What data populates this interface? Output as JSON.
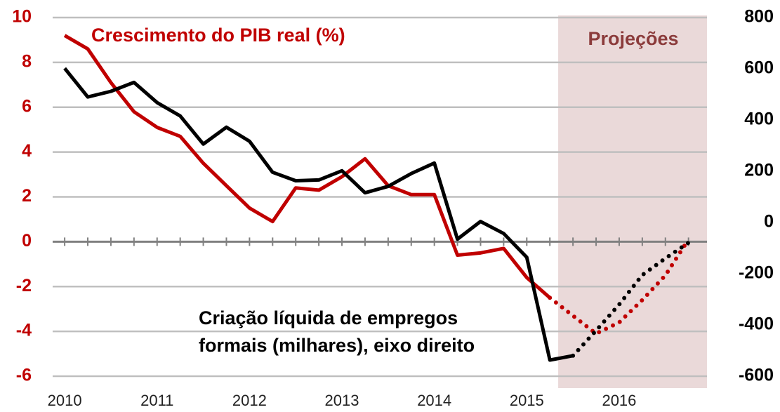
{
  "chart_data": {
    "type": "line",
    "annotations": {
      "gdp": "Crescimento do PIB real (%)",
      "projection": "Projeções",
      "jobs": [
        "Criação líquida de empregos",
        "formais (milhares), eixo direito"
      ]
    },
    "x": [
      2010,
      2010.25,
      2010.5,
      2010.75,
      2011,
      2011.25,
      2011.5,
      2011.75,
      2012,
      2012.25,
      2012.5,
      2012.75,
      2013,
      2013.25,
      2013.5,
      2013.75,
      2014,
      2014.25,
      2014.5,
      2014.75,
      2015,
      2015.25,
      2015.5,
      2015.75,
      2016,
      2016.25,
      2016.5,
      2016.75
    ],
    "series": [
      {
        "name": "Crescimento do PIB real (%)",
        "color": "#c00000",
        "dotted_from": 2015.25,
        "values": [
          9.2,
          8.6,
          7.1,
          5.8,
          5.1,
          4.7,
          3.5,
          2.5,
          1.5,
          0.9,
          2.4,
          2.3,
          2.9,
          3.7,
          2.5,
          2.1,
          2.1,
          -0.6,
          -0.5,
          -0.3,
          -1.6,
          -2.5,
          -3.3,
          -4.1,
          -3.6,
          -2.6,
          -1.5,
          0.1
        ]
      },
      {
        "name": "Criação líquida de empregos formais (milhares), eixo direito",
        "color": "#000000",
        "axis": "y2",
        "dotted_from": 2015.5,
        "values": [
          602,
          490,
          512,
          547,
          468,
          416,
          306,
          372,
          317,
          196,
          163,
          166,
          202,
          116,
          141,
          191,
          232,
          -65,
          4,
          -43,
          -136,
          -537,
          -520,
          -422,
          -320,
          -205,
          -140,
          -79
        ]
      }
    ],
    "projection_range": [
      2015.34,
      2016.95
    ],
    "xlim": [
      2009.87,
      2016.95
    ],
    "xticks": [
      2010,
      2011,
      2012,
      2013,
      2014,
      2015,
      2016
    ],
    "ylim": [
      -6,
      10
    ],
    "yticks": [
      -6,
      -4,
      -2,
      0,
      2,
      4,
      6,
      8,
      10
    ],
    "y2lim": [
      -600,
      800
    ],
    "y2ticks": [
      -600,
      -400,
      -200,
      0,
      200,
      400,
      600,
      800
    ],
    "grid": true
  }
}
